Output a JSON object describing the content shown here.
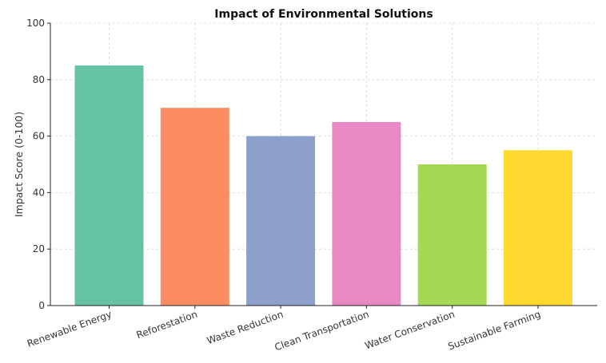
{
  "chart_data": {
    "type": "bar",
    "title": "Impact of Environmental Solutions",
    "xlabel": "",
    "ylabel": "Impact Score (0-100)",
    "categories": [
      "Renewable Energy",
      "Reforestation",
      "Waste Reduction",
      "Clean Transportation",
      "Water Conservation",
      "Sustainable Farming"
    ],
    "values": [
      85,
      70,
      60,
      65,
      50,
      55
    ],
    "colors": [
      "#66c2a5",
      "#fc8d62",
      "#8da0cb",
      "#e78ac3",
      "#a6d854",
      "#ffd92f"
    ],
    "ylim": [
      0,
      100
    ],
    "yticks": [
      "0",
      "20",
      "40",
      "60",
      "80",
      "100"
    ],
    "grid": true,
    "legend": false
  }
}
